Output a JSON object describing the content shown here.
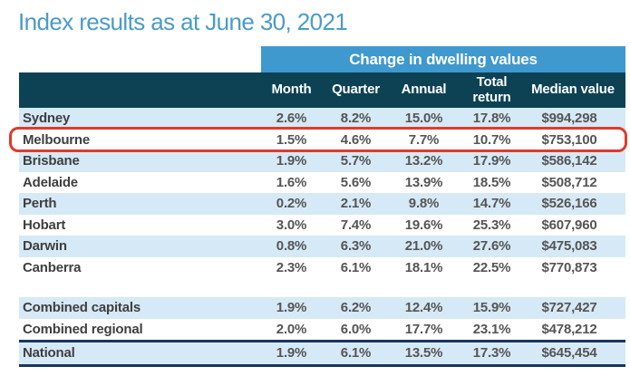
{
  "page": {
    "title": "Index results as at June 30, 2021"
  },
  "colors": {
    "title_blue": "#4A9BC8",
    "band_blue": "#3F99CE",
    "header_dark": "#0C4254",
    "header_text": "#FFFFFF",
    "row_alt": "#D6E9F6",
    "navy_line": "#17365D",
    "highlight_red": "#E03A2D",
    "text_dark": "#3F3F3F",
    "text_val": "#555555"
  },
  "table": {
    "spanner": "Change in dwelling values",
    "columns": [
      "Month",
      "Quarter",
      "Annual",
      "Total return",
      "Median value"
    ],
    "rows": [
      {
        "name": "Sydney",
        "month": "2.6%",
        "quarter": "8.2%",
        "annual": "15.0%",
        "total_return": "17.8%",
        "median_value": "$994,298",
        "highlighted": false
      },
      {
        "name": "Melbourne",
        "month": "1.5%",
        "quarter": "4.6%",
        "annual": "7.7%",
        "total_return": "10.7%",
        "median_value": "$753,100",
        "highlighted": true
      },
      {
        "name": "Brisbane",
        "month": "1.9%",
        "quarter": "5.7%",
        "annual": "13.2%",
        "total_return": "17.9%",
        "median_value": "$586,142",
        "highlighted": false
      },
      {
        "name": "Adelaide",
        "month": "1.6%",
        "quarter": "5.6%",
        "annual": "13.9%",
        "total_return": "18.5%",
        "median_value": "$508,712",
        "highlighted": false
      },
      {
        "name": "Perth",
        "month": "0.2%",
        "quarter": "2.1%",
        "annual": "9.8%",
        "total_return": "14.7%",
        "median_value": "$526,166",
        "highlighted": false
      },
      {
        "name": "Hobart",
        "month": "3.0%",
        "quarter": "7.4%",
        "annual": "19.6%",
        "total_return": "25.3%",
        "median_value": "$607,960",
        "highlighted": false
      },
      {
        "name": "Darwin",
        "month": "0.8%",
        "quarter": "6.3%",
        "annual": "21.0%",
        "total_return": "27.6%",
        "median_value": "$475,083",
        "highlighted": false
      },
      {
        "name": "Canberra",
        "month": "2.3%",
        "quarter": "6.1%",
        "annual": "18.1%",
        "total_return": "22.5%",
        "median_value": "$770,873",
        "highlighted": false
      }
    ],
    "summary_rows": [
      {
        "name": "Combined capitals",
        "month": "1.9%",
        "quarter": "6.2%",
        "annual": "12.4%",
        "total_return": "15.9%",
        "median_value": "$727,427",
        "national": false
      },
      {
        "name": "Combined regional",
        "month": "2.0%",
        "quarter": "6.0%",
        "annual": "17.7%",
        "total_return": "23.1%",
        "median_value": "$478,212",
        "national": false
      },
      {
        "name": "National",
        "month": "1.9%",
        "quarter": "6.1%",
        "annual": "13.5%",
        "total_return": "17.3%",
        "median_value": "$645,454",
        "national": true
      }
    ]
  },
  "chart_data": {
    "type": "table",
    "title": "Index results as at June 30, 2021",
    "column_group_header": "Change in dwelling values",
    "columns": [
      "Month",
      "Quarter",
      "Annual",
      "Total return",
      "Median value"
    ],
    "units": {
      "month": "%",
      "quarter": "%",
      "annual": "%",
      "total_return": "%",
      "median_value": "$"
    },
    "rows": [
      {
        "label": "Sydney",
        "values": [
          2.6,
          8.2,
          15.0,
          17.8,
          994298
        ]
      },
      {
        "label": "Melbourne",
        "values": [
          1.5,
          4.6,
          7.7,
          10.7,
          753100
        ]
      },
      {
        "label": "Brisbane",
        "values": [
          1.9,
          5.7,
          13.2,
          17.9,
          586142
        ]
      },
      {
        "label": "Adelaide",
        "values": [
          1.6,
          5.6,
          13.9,
          18.5,
          508712
        ]
      },
      {
        "label": "Perth",
        "values": [
          0.2,
          2.1,
          9.8,
          14.7,
          526166
        ]
      },
      {
        "label": "Hobart",
        "values": [
          3.0,
          7.4,
          19.6,
          25.3,
          607960
        ]
      },
      {
        "label": "Darwin",
        "values": [
          0.8,
          6.3,
          21.0,
          27.6,
          475083
        ]
      },
      {
        "label": "Canberra",
        "values": [
          2.3,
          6.1,
          18.1,
          22.5,
          770873
        ]
      },
      {
        "label": "Combined capitals",
        "values": [
          1.9,
          6.2,
          12.4,
          15.9,
          727427
        ]
      },
      {
        "label": "Combined regional",
        "values": [
          2.0,
          6.0,
          17.7,
          23.1,
          478212
        ]
      },
      {
        "label": "National",
        "values": [
          1.9,
          6.1,
          13.5,
          17.3,
          645454
        ]
      }
    ],
    "highlighted_row": "Melbourne"
  }
}
